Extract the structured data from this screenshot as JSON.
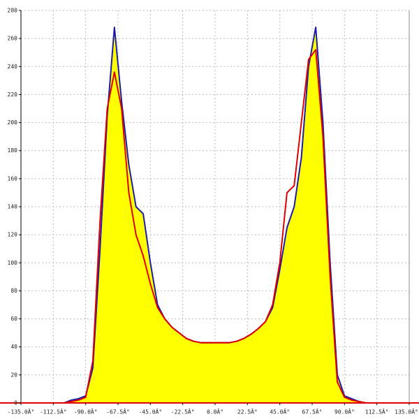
{
  "chart_data": {
    "type": "line",
    "x": [
      -105,
      -100,
      -95,
      -90,
      -85,
      -80,
      -75,
      -70,
      -65,
      -60,
      -55,
      -50,
      -45,
      -40,
      -35,
      -30,
      -25,
      -20,
      -15,
      -10,
      -5,
      0,
      5,
      10,
      15,
      20,
      25,
      30,
      35,
      40,
      45,
      50,
      55,
      60,
      65,
      70,
      75,
      80,
      85,
      90,
      95,
      100,
      105
    ],
    "series": [
      {
        "color": "#1c1ca8",
        "fill": "#ffff00",
        "values": [
          0,
          2,
          3,
          5,
          25,
          110,
          205,
          268,
          215,
          170,
          140,
          135,
          100,
          70,
          60,
          54,
          50,
          46,
          44,
          43,
          43,
          43,
          43,
          43,
          44,
          46,
          49,
          53,
          58,
          68,
          95,
          125,
          140,
          175,
          240,
          268,
          200,
          100,
          20,
          5,
          3,
          1,
          0
        ]
      },
      {
        "color": "#e00000",
        "values": [
          0,
          1,
          2,
          4,
          30,
          130,
          210,
          236,
          210,
          150,
          120,
          105,
          85,
          68,
          60,
          54,
          50,
          46,
          44,
          43,
          43,
          43,
          43,
          43,
          44,
          46,
          49,
          53,
          58,
          70,
          100,
          150,
          155,
          200,
          245,
          252,
          190,
          90,
          15,
          4,
          2,
          1,
          0
        ]
      }
    ],
    "xlim": [
      -135,
      135
    ],
    "xticks": [
      {
        "value": -135,
        "label": "-135.0Â°"
      },
      {
        "value": -112.5,
        "label": "-112.5Â°"
      },
      {
        "value": -90,
        "label": "-90.0Â°"
      },
      {
        "value": -67.5,
        "label": "-67.5Â°"
      },
      {
        "value": -45,
        "label": "-45.0Â°"
      },
      {
        "value": -22.5,
        "label": "-22.5Â°"
      },
      {
        "value": 0,
        "label": "0.0Â°"
      },
      {
        "value": 22.5,
        "label": "22.5Â°"
      },
      {
        "value": 45,
        "label": "45.0Â°"
      },
      {
        "value": 67.5,
        "label": "67.5Â°"
      },
      {
        "value": 90,
        "label": "90.0Â°"
      },
      {
        "value": 112.5,
        "label": "112.5Â°"
      },
      {
        "value": 135,
        "label": "135.0Â°"
      }
    ],
    "ylim": [
      0,
      280
    ],
    "yticks": [
      0,
      20,
      40,
      60,
      80,
      100,
      120,
      140,
      160,
      180,
      200,
      220,
      240,
      260,
      280
    ],
    "grid": true
  }
}
